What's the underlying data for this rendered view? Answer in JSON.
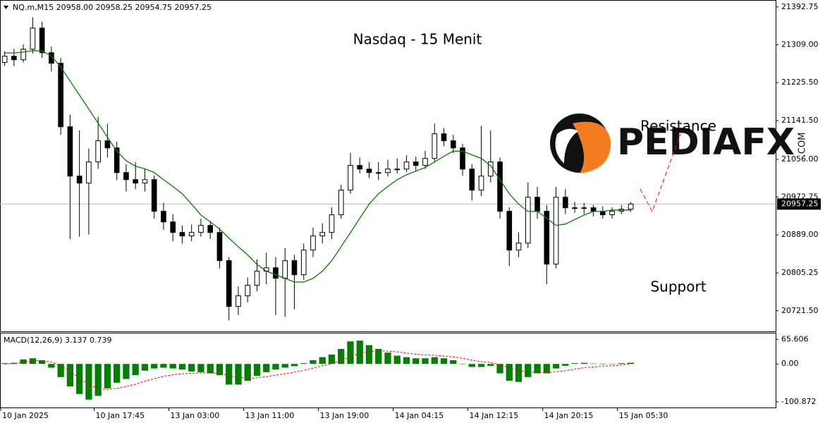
{
  "chart_data": [
    {
      "type": "candlestick",
      "header": "NQ.m,M15  20958.00 20958.25 20954.75 20957.25",
      "title": "Nasdaq - 15 Menit",
      "annotations": [
        "Resistance",
        "Support"
      ],
      "logo": {
        "text": "PEDIAFX",
        "suffix": ".COM"
      },
      "ohlc": [
        [
          21270.0,
          21295.0,
          21262.5,
          21283.75
        ],
        [
          21283.75,
          21300.0,
          21262.0,
          21276.0
        ],
        [
          21276.0,
          21310.0,
          21270.0,
          21299.25
        ],
        [
          21299.25,
          21370.0,
          21290.0,
          21346.0
        ],
        [
          21346.0,
          21360.0,
          21280.0,
          21291.5
        ],
        [
          21291.5,
          21305.0,
          21250.0,
          21268.25
        ],
        [
          21268.25,
          21280.0,
          21110.0,
          21128.0
        ],
        [
          21128.0,
          21155.0,
          20880.0,
          21019.0
        ],
        [
          21019.0,
          21120.0,
          20885.0,
          21003.5
        ],
        [
          21003.5,
          21080.0,
          20890.0,
          21050.25
        ],
        [
          21050.25,
          21150.0,
          21035.0,
          21097.0
        ],
        [
          21097.0,
          21135.0,
          21060.0,
          21081.25
        ],
        [
          21081.25,
          21095.0,
          21010.0,
          21026.75
        ],
        [
          21026.75,
          21045.0,
          20985.0,
          21011.25
        ],
        [
          21011.25,
          21050.0,
          20990.0,
          21003.5
        ],
        [
          21003.5,
          21035.0,
          20985.0,
          21011.25
        ],
        [
          21011.25,
          21020.0,
          20925.0,
          20941.25
        ],
        [
          20941.25,
          20960.0,
          20900.0,
          20917.75
        ],
        [
          20917.75,
          20935.0,
          20875.0,
          20894.5
        ],
        [
          20894.5,
          20910.0,
          20870.0,
          20886.75
        ],
        [
          20886.75,
          20912.0,
          20875.0,
          20894.5
        ],
        [
          20894.5,
          20925.0,
          20885.0,
          20910.0
        ],
        [
          20910.0,
          20920.0,
          20880.0,
          20894.5
        ],
        [
          20894.5,
          20905.0,
          20815.0,
          20832.25
        ],
        [
          20832.25,
          20840.0,
          20700.0,
          20731.0
        ],
        [
          20731.0,
          20775.0,
          20712.0,
          20754.5
        ],
        [
          20754.5,
          20795.0,
          20740.0,
          20777.75
        ],
        [
          20777.75,
          20835.0,
          20765.0,
          20809.0
        ],
        [
          20809.0,
          20850.0,
          20780.0,
          20816.5
        ],
        [
          20816.5,
          20840.0,
          20712.0,
          20793.25
        ],
        [
          20793.25,
          20860.0,
          20708.0,
          20832.25
        ],
        [
          20832.25,
          20845.0,
          20725.0,
          20801.0
        ],
        [
          20801.0,
          20870.0,
          20790.0,
          20855.5
        ],
        [
          20855.5,
          20905.0,
          20840.0,
          20886.75
        ],
        [
          20886.75,
          20915.0,
          20870.0,
          20894.5
        ],
        [
          20894.5,
          20950.0,
          20880.0,
          20933.5
        ],
        [
          20933.5,
          21000.0,
          20925.0,
          20988.0
        ],
        [
          20988.0,
          21070.0,
          20980.0,
          21042.5
        ],
        [
          21042.5,
          21060.0,
          21025.0,
          21034.5
        ],
        [
          21034.5,
          21050.0,
          21015.0,
          21026.75
        ],
        [
          21026.75,
          21050.0,
          21010.0,
          21026.75
        ],
        [
          21026.75,
          21055.0,
          21018.0,
          21034.5
        ],
        [
          21034.5,
          21058.0,
          21025.0,
          21034.5
        ],
        [
          21034.5,
          21065.0,
          21028.0,
          21050.25
        ],
        [
          21050.25,
          21062.0,
          21030.0,
          21042.5
        ],
        [
          21042.5,
          21075.0,
          21035.0,
          21058.0
        ],
        [
          21058.0,
          21135.0,
          21050.0,
          21112.5
        ],
        [
          21112.5,
          21125.0,
          21085.0,
          21097.0
        ],
        [
          21097.0,
          21110.0,
          21070.0,
          21081.25
        ],
        [
          21081.25,
          21090.0,
          21020.0,
          21034.5
        ],
        [
          21034.5,
          21045.0,
          20965.0,
          20988.0
        ],
        [
          20988.0,
          21130.0,
          20975.0,
          21019.0
        ],
        [
          21019.0,
          21120.0,
          21005.0,
          21050.25
        ],
        [
          21050.25,
          21060.0,
          20925.0,
          20941.25
        ],
        [
          20941.25,
          20950.0,
          20820.0,
          20855.5
        ],
        [
          20855.5,
          20895.0,
          20840.0,
          20871.0
        ],
        [
          20871.0,
          21005.0,
          20860.0,
          20972.25
        ],
        [
          20972.25,
          20995.0,
          20925.0,
          20941.25
        ],
        [
          20941.25,
          20955.0,
          20780.0,
          20824.5
        ],
        [
          20824.5,
          20995.0,
          20815.0,
          20972.25
        ],
        [
          20972.25,
          20990.0,
          20935.0,
          20949.0
        ],
        [
          20949.0,
          20962.0,
          20938.0,
          20949.0
        ],
        [
          20949.0,
          20960.0,
          20935.0,
          20949.0
        ],
        [
          20949.0,
          20955.0,
          20930.0,
          20941.25
        ],
        [
          20941.25,
          20952.0,
          20925.0,
          20933.5
        ],
        [
          20933.5,
          20950.0,
          20925.0,
          20941.25
        ],
        [
          20941.25,
          20955.0,
          20935.0,
          20945.75
        ],
        [
          20945.75,
          20962.0,
          20940.0,
          20957.25
        ]
      ],
      "ma": {
        "color": "#008000",
        "values": [
          21291,
          21291,
          21293,
          21296,
          21296,
          21284,
          21260,
          21229,
          21198,
          21167,
          21136,
          21105,
          21074,
          21053,
          21041,
          21035,
          21027,
          21011,
          20996,
          20980,
          20957,
          20933,
          20918,
          20902,
          20882,
          20863,
          20845,
          20824,
          20809,
          20801,
          20793,
          20785,
          20785,
          20793,
          20809,
          20832,
          20863,
          20894,
          20926,
          20957,
          20980,
          20996,
          21011,
          21022,
          21030,
          21038,
          21050,
          21063,
          21074,
          21074,
          21066,
          21058,
          21042,
          21011,
          20980,
          20957,
          20941,
          20941,
          20926,
          20910,
          20913,
          20923,
          20933,
          20941,
          20941,
          20944,
          20944,
          20944
        ]
      },
      "last_price": 20957.25,
      "ylim": [
        20676,
        21408
      ],
      "yticks": [
        21392.75,
        {
          "value": 21309.0,
          "label": "21309.00"
        },
        {
          "value": 21225.5,
          "label": "21225.50"
        },
        {
          "value": 21141.5,
          "label": "21141.50"
        },
        {
          "value": 21056.0,
          "label": "21056.00"
        },
        20972.75,
        {
          "value": 20889.0,
          "label": "20889.00"
        },
        20805.25,
        {
          "value": 20721.5,
          "label": "20721.50"
        }
      ],
      "xlim": [
        0,
        83
      ],
      "xticks": [
        {
          "value": 0,
          "label": "10 Jan 2025"
        },
        {
          "value": 10,
          "label": "10 Jan 17:45"
        },
        {
          "value": 18,
          "label": "13 Jan 03:00"
        },
        {
          "value": 26,
          "label": "13 Jan 11:00"
        },
        {
          "value": 34,
          "label": "13 Jan 19:00"
        },
        {
          "value": 42,
          "label": "14 Jan 04:15"
        },
        {
          "value": 50,
          "label": "14 Jan 12:15"
        },
        {
          "value": 58,
          "label": "14 Jan 20:15"
        },
        {
          "value": 66,
          "label": "15 Jan 05:30"
        }
      ]
    },
    {
      "type": "macd",
      "title": "MACD(12,26,9) 3.137 0.739",
      "histogram": {
        "color": "#008000",
        "values": [
          2,
          3,
          12,
          15,
          10,
          -10,
          -35,
          -60,
          -80,
          -95,
          -85,
          -65,
          -50,
          -40,
          -30,
          -18,
          -12,
          -10,
          -12,
          -15,
          -20,
          -22,
          -25,
          -30,
          -55,
          -55,
          -45,
          -32,
          -22,
          -15,
          -10,
          -6,
          2,
          10,
          18,
          25,
          40,
          60,
          62,
          50,
          40,
          30,
          22,
          18,
          15,
          15,
          18,
          15,
          10,
          0,
          -8,
          -8,
          -5,
          -25,
          -45,
          -48,
          -35,
          -25,
          -25,
          -12,
          -5,
          2,
          3,
          1,
          -1,
          0,
          2,
          3.137
        ]
      },
      "signal": {
        "color": "#ff0000",
        "values": [
          0,
          1,
          4,
          8,
          9,
          5,
          -5,
          -20,
          -38,
          -55,
          -66,
          -68,
          -65,
          -60,
          -54,
          -46,
          -39,
          -33,
          -29,
          -26,
          -25,
          -24,
          -24,
          -25,
          -31,
          -36,
          -38,
          -37,
          -34,
          -30,
          -26,
          -22,
          -17,
          -11,
          -5,
          1,
          9,
          19,
          28,
          33,
          35,
          34,
          32,
          29,
          26,
          24,
          23,
          21,
          19,
          15,
          10,
          6,
          4,
          -2,
          -10,
          -18,
          -21,
          -22,
          -23,
          -21,
          -18,
          -14,
          -10,
          -8,
          -6,
          -5,
          -3,
          0.739
        ]
      },
      "ylim": [
        -116,
        83
      ],
      "yticks": [
        65.606,
        {
          "value": 0,
          "label": "0.00"
        },
        -100.872
      ]
    }
  ]
}
